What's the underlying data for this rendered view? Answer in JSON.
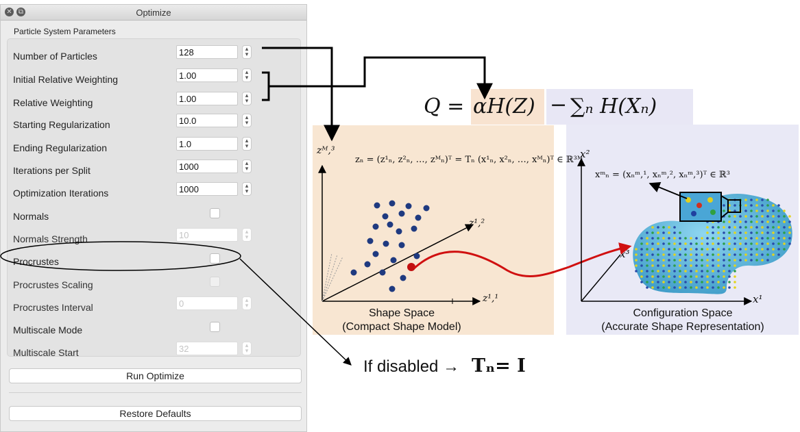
{
  "window": {
    "title": "Optimize"
  },
  "group": {
    "title": "Particle System Parameters"
  },
  "params": [
    {
      "label": "Number of Particles",
      "value": "128",
      "disabled": false
    },
    {
      "label": "Initial Relative Weighting",
      "value": "1.00",
      "disabled": false
    },
    {
      "label": "Relative Weighting",
      "value": "1.00",
      "disabled": false
    },
    {
      "label": "Starting Regularization",
      "value": "10.0",
      "disabled": false
    },
    {
      "label": "Ending Regularization",
      "value": "1.0",
      "disabled": false
    },
    {
      "label": "Iterations per Split",
      "value": "1000",
      "disabled": false
    },
    {
      "label": "Optimization Iterations",
      "value": "1000",
      "disabled": false
    },
    {
      "label": "Normals",
      "checkbox": true,
      "checked": false,
      "disabled": false
    },
    {
      "label": "Normals Strength",
      "value": "10",
      "disabled": true
    },
    {
      "label": "Procrustes",
      "checkbox": true,
      "checked": false,
      "disabled": false
    },
    {
      "label": "Procrustes Scaling",
      "checkbox": true,
      "checked": false,
      "disabled": true
    },
    {
      "label": "Procrustes Interval",
      "value": "0",
      "disabled": true
    },
    {
      "label": "Multiscale Mode",
      "checkbox": true,
      "checked": false,
      "disabled": false
    },
    {
      "label": "Multiscale Start",
      "value": "32",
      "disabled": true
    }
  ],
  "buttons": {
    "run": "Run Optimize",
    "restore": "Restore Defaults"
  },
  "figure": {
    "main_equation": {
      "lhs": "Q =",
      "term_z": "αH(Z)",
      "minus": "−",
      "term_x": "∑ₙ H(Xₙ)"
    },
    "shape_space": {
      "equation": "zₙ = (z¹ₙ, z²ₙ, …, zᴹₙ)ᵀ = Tₙ (x¹ₙ, x²ₙ, …, xᴹₙ)ᵀ ∈ ℝ³ᴹ",
      "axis_vertical": "zᴹ,³",
      "axis_diagonal": "z¹,²",
      "axis_horizontal": "z¹,¹",
      "caption_line1": "Shape Space",
      "caption_line2": "(Compact Shape Model)"
    },
    "config_space": {
      "equation": "xᵐₙ = (xₙᵐ,¹, xₙᵐ,², xₙᵐ,³)ᵀ ∈ ℝ³",
      "axis_vertical": "x²",
      "axis_diagonal": "x³",
      "axis_horizontal": "x¹",
      "caption_line1": "Configuration Space",
      "caption_line2": "(Accurate Shape Representation)"
    },
    "annotation": {
      "prefix": "If disabled →",
      "expr": "Tₙ= I"
    }
  },
  "colors": {
    "points": "#1f3a80",
    "highlight_point": "#c21010",
    "curve": "#d01010",
    "shape": "#5fb8e0"
  }
}
